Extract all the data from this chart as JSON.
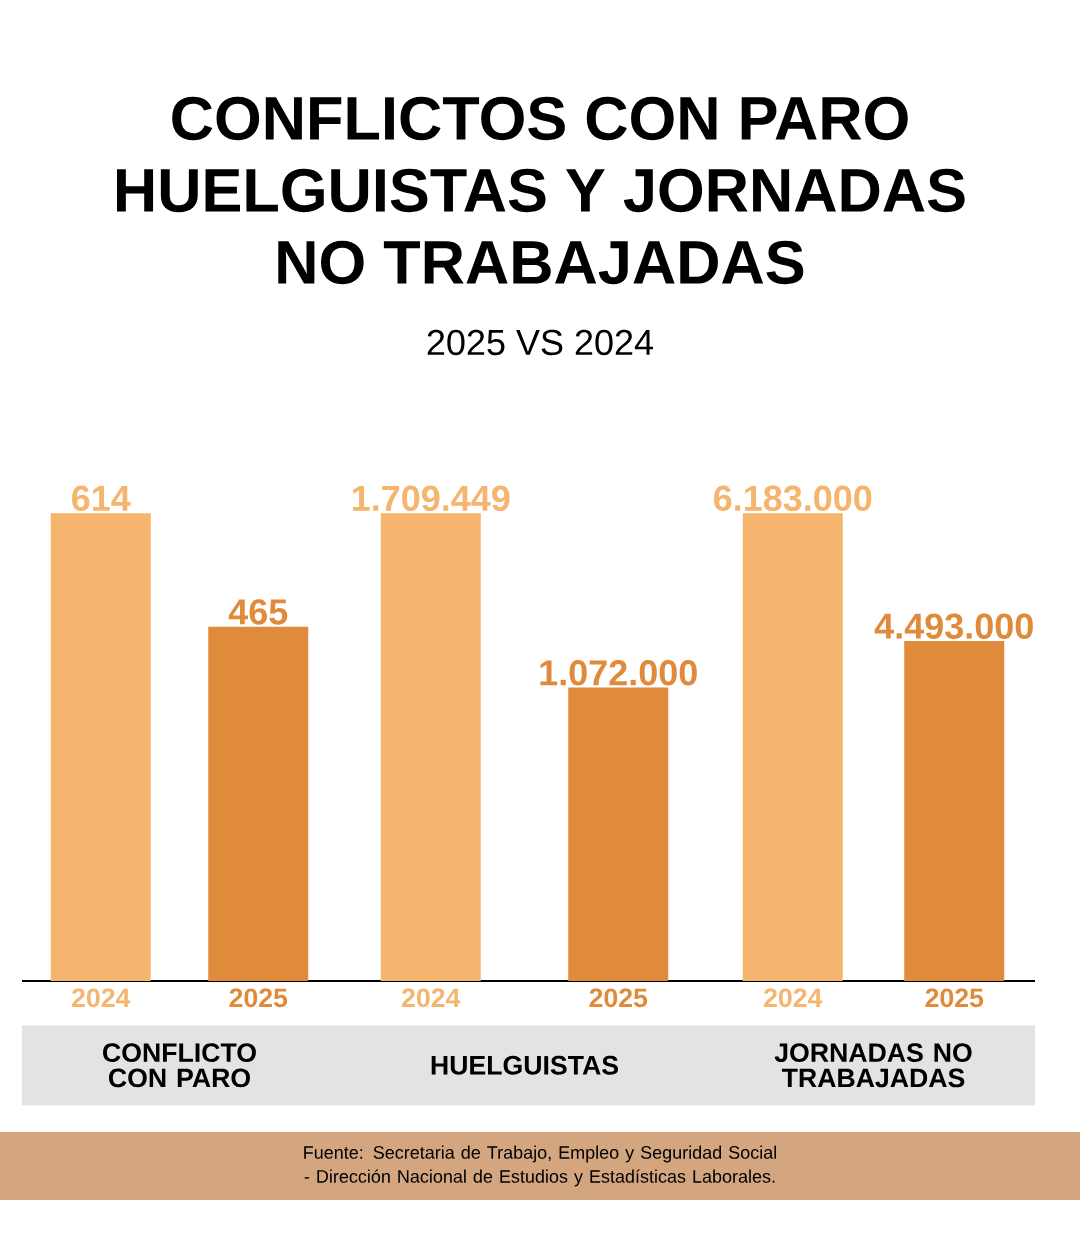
{
  "chart_data": [
    {
      "type": "other",
      "title": "CONFLICTOS CON PARO HUELGUISTAS Y JORNADAS NO TRABAJADAS",
      "subtitle": "2025 VS 2024",
      "annotations": [
        "Fuente: Secretaria de Trabajo, Empleo y Seguridad Social - Dirección Nacional de Estudios y Estadísticas Laborales."
      ]
    },
    {
      "type": "bar",
      "xlabel": "CONFLICTO CON PARO",
      "categories": [
        "2024",
        "2025"
      ],
      "values": [
        614,
        465
      ],
      "value_labels": [
        "614",
        "465"
      ],
      "colors": [
        "#f5b56e",
        "#e08a3c"
      ]
    },
    {
      "type": "bar",
      "xlabel": "HUELGUISTAS",
      "categories": [
        "2024",
        "2025"
      ],
      "values": [
        1709449,
        1072000
      ],
      "value_labels": [
        "1.709.449",
        "1.072.000"
      ],
      "colors": [
        "#f5b56e",
        "#e08a3c"
      ]
    },
    {
      "type": "bar",
      "xlabel": "JORNADAS NO TRABAJADAS",
      "categories": [
        "2024",
        "2025"
      ],
      "values": [
        6183000,
        4493000
      ],
      "value_labels": [
        "6.183.000",
        "4.493.000"
      ],
      "colors": [
        "#f5b56e",
        "#e08a3c"
      ]
    }
  ]
}
